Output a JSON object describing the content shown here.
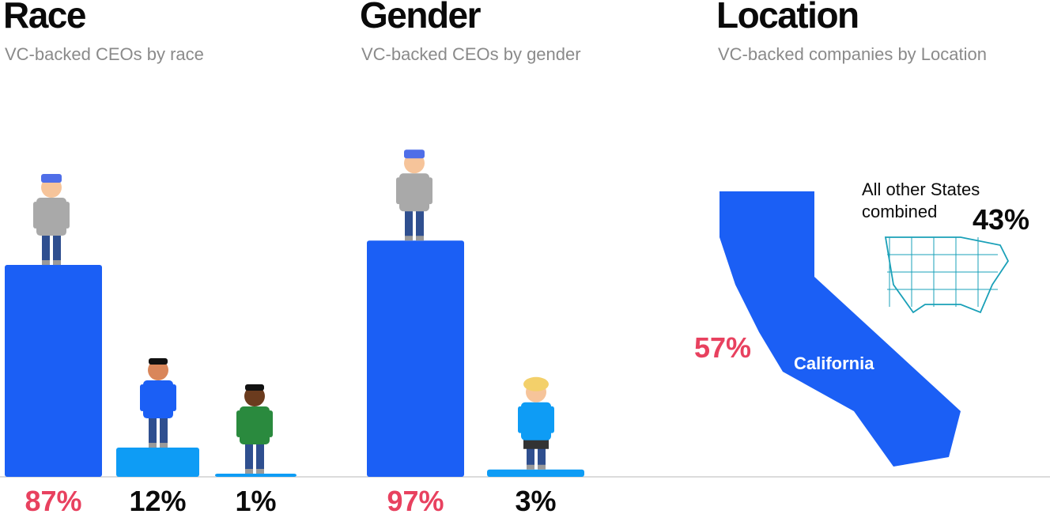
{
  "colors": {
    "bar_primary": "#1b5ff5",
    "bar_secondary": "#0e9cf5",
    "highlight_pct": "#e8415f",
    "normal_pct": "#0a0a0a",
    "baseline": "#cccccc",
    "map_outline": "#1aa0b8"
  },
  "chart_data": [
    {
      "type": "bar",
      "title": "Race",
      "subtitle": "VC-backed CEOs by race",
      "categories": [
        "87%",
        "12%",
        "1%"
      ],
      "values": [
        87,
        12,
        1
      ],
      "ylim": [
        0,
        100
      ],
      "labels": [
        "87%",
        "12%",
        "1%"
      ],
      "highlight_index": 0,
      "icons": [
        "white-man-icon",
        "man-icon",
        "man-icon"
      ]
    },
    {
      "type": "bar",
      "title": "Gender",
      "subtitle": "VC-backed CEOs by gender",
      "categories": [
        "97%",
        "3%"
      ],
      "values": [
        97,
        3
      ],
      "ylim": [
        0,
        100
      ],
      "labels": [
        "97%",
        "3%"
      ],
      "highlight_index": 0,
      "icons": [
        "man-icon",
        "woman-icon"
      ]
    },
    {
      "type": "pie",
      "title": "Location",
      "subtitle": "VC-backed companies by Location",
      "slices": [
        {
          "name": "California",
          "value": 57,
          "label": "57%"
        },
        {
          "name": "All other States combined",
          "value": 43,
          "label": "43%"
        }
      ],
      "icons": [
        "california-map-icon",
        "us-map-icon"
      ]
    }
  ]
}
